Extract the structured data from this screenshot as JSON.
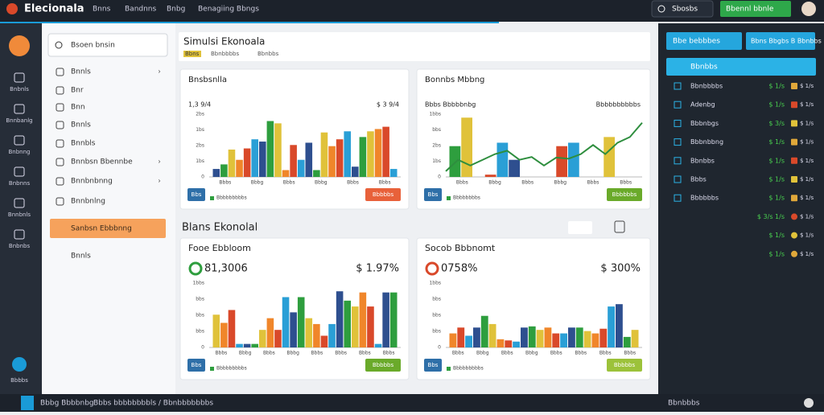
{
  "topbar": {
    "brand": "Elecionala",
    "nav": [
      "Bnns",
      "Bandnns",
      "Bnbg",
      "Benagiing Bbngs"
    ],
    "dropdown": "Sbosbs",
    "button": "Bbennl bbnle"
  },
  "rail": [
    "Bnbnls",
    "Bnnbanlg",
    "Bnbnng",
    "Bnbnns",
    "Bnnbnls",
    "Bnbnbs"
  ],
  "rail_bottom": "Bbbbs",
  "sidebar": {
    "search": "Bsoen bnsin",
    "items": [
      "Bnnls",
      "Bnr",
      "Bnn",
      "Bnnls",
      "Bnnbls",
      "Bnnbsn Bbennbe",
      "Bnnbnbnng",
      "Bnnbnlng"
    ],
    "active": "Sanbsn Ebbbnng",
    "last": "Bnnls"
  },
  "header": {
    "title": "Simulsi Ekonoala",
    "sub": [
      "Bbns",
      "Bbnbbbbs",
      "Bbnbbs"
    ]
  },
  "section": "Blans Ekonolal",
  "palette": [
    "#2e4f8f",
    "#2e9e3e",
    "#e0c23a",
    "#f0862a",
    "#d9492a",
    "#2a9fd6"
  ],
  "cards": [
    {
      "title": "Bnsbsnlla",
      "left": "1,3 9/4",
      "right": "$ 3 9/4",
      "ticks": [
        "2bs",
        "1bs",
        "2bs",
        "1bs",
        "0"
      ],
      "cats": [
        "Bbbs",
        "Bbbg",
        "Bbbs",
        "Bbbg",
        "Bbbs",
        "Bbbs"
      ],
      "values": [
        14,
        22,
        48,
        30,
        50,
        66,
        62,
        98,
        94,
        12,
        56,
        30,
        60,
        12,
        78,
        54,
        66,
        80,
        18,
        70,
        80,
        84,
        88,
        14
      ],
      "line": [],
      "badge": "Bbs",
      "legend": "Bbbbbbbbbs",
      "button": "Bbbbbs",
      "button_color": "#e8613a"
    },
    {
      "title": "Bonnbs Mbbng",
      "left": "Bbbs Bbbbbnbg",
      "right": "Bbbbbbbbbbs",
      "ticks": [
        "1bbs",
        "bbs",
        "2bs",
        "1bs",
        "0"
      ],
      "cats": [
        "Bbbs",
        "Bbbg",
        "Bbbs",
        "Bbbg",
        "Bbbs",
        "Bbbs"
      ],
      "values": [
        54,
        104,
        0,
        4,
        60,
        30,
        0,
        0,
        0,
        54,
        60,
        0,
        0,
        70,
        0,
        0
      ],
      "line": [
        10,
        30,
        20,
        30,
        40,
        46,
        30,
        35,
        20,
        34,
        32,
        40,
        56,
        40,
        60,
        70,
        95
      ],
      "badge": "Bbs",
      "legend": "Bbbbbbbbs",
      "button": "Bbbbbbs",
      "button_color": "#6aaa2a"
    },
    {
      "title": "Fooe Ebbloom",
      "left": "81,3006",
      "right": "$ 1.97%",
      "ticks": [
        "1bbs",
        "bbs",
        "bbs",
        "bbs",
        "0"
      ],
      "cats": [
        "Bbbs",
        "Bbbg",
        "Bbbs",
        "Bbbg",
        "Bbbs",
        "Bbbs",
        "Bbbs",
        "Bbbs"
      ],
      "values": [
        56,
        42,
        64,
        6,
        6,
        6,
        30,
        50,
        30,
        86,
        60,
        86,
        50,
        40,
        20,
        40,
        96,
        80,
        70,
        94,
        70,
        6,
        94,
        94
      ],
      "line": [],
      "badge": "Bbs",
      "legend": "Bbbbbbbbbs",
      "button": "Bbbbbs",
      "button_color": "#6aaa2a"
    },
    {
      "title": "Socob Bbbnomt",
      "left": "0758%",
      "right": "$ 300%",
      "ticks": [
        "1bbs",
        "bbs",
        "bbs",
        "bbs",
        "0"
      ],
      "cats": [
        "Bbbs",
        "Bbbg",
        "Bbbs",
        "Bbbg",
        "Bbbs",
        "Bbbs",
        "Bbbs",
        "Bbbs"
      ],
      "values": [
        24,
        34,
        20,
        34,
        54,
        40,
        14,
        12,
        10,
        34,
        36,
        30,
        34,
        24,
        24,
        34,
        34,
        28,
        24,
        32,
        70,
        74,
        18,
        30
      ],
      "line": [],
      "badge": "Bbs",
      "legend": "Bbbbbbbbbs",
      "button": "Bbbbbs",
      "button_color": "#9cc23a"
    }
  ],
  "right_panel": {
    "buttons": [
      "Bbe bebbbes",
      "Bbns Bbgbs B Bbnbbs"
    ],
    "highlight": "Bbnbbs",
    "rows": [
      {
        "label": "Bbnbbbbs",
        "value": "$ 1/s",
        "tag": "$ 1/s"
      },
      {
        "label": "Adenbg",
        "value": "$ 1/s",
        "tag": "$ 1/s"
      },
      {
        "label": "Bbbnbgs",
        "value": "$ 3/s",
        "tag": "$ 1/s"
      },
      {
        "label": "Bbbnbbng",
        "value": "$ 1/s",
        "tag": "$ 1/s"
      },
      {
        "label": "Bbnbbs",
        "value": "$ 1/s",
        "tag": "$ 1/s"
      },
      {
        "label": "Bbbs",
        "value": "$ 1/s",
        "tag": "$ 1/s"
      },
      {
        "label": "Bbbbbbs",
        "value": "$ 1/s",
        "tag": "$ 1/s"
      },
      {
        "label": "",
        "value": "$ 3/s 1/s",
        "tag": "$ 1/s"
      },
      {
        "label": "",
        "value": "$ 1/s",
        "tag": "$ 1/s"
      },
      {
        "label": "",
        "value": "$ 1/s",
        "tag": "$ 1/s"
      }
    ]
  },
  "footer": {
    "left": "Bbbg Bbbbnbg",
    "mid": "Bbbs bbbbbbbbls / Bbnbbbbbbbs",
    "right": "Bbnbbbs"
  }
}
